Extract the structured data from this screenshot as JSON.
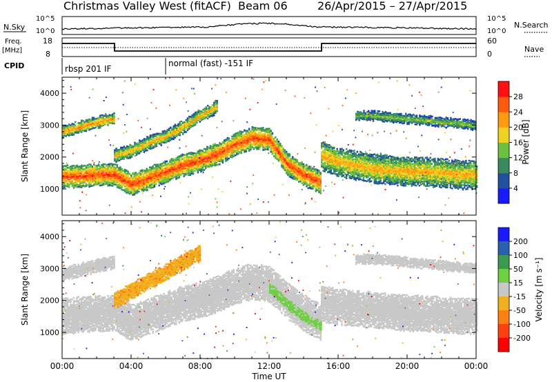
{
  "title": {
    "station": "Christmas Valley West (fitACF)",
    "beam": "Beam 06",
    "dates": "26/Apr/2015 – 27/Apr/2015"
  },
  "top_panels": {
    "nsky_label": "N.Sky",
    "nsky_tick_hi": "10^5",
    "nsky_tick_lo": "10^0",
    "nsearch_label": "N.Search",
    "freq_label_1": "Freq.",
    "freq_label_2": "[MHz]",
    "freq_tick_hi": "18",
    "freq_tick_lo": "8",
    "nave_label": "Nave",
    "nave_tick_hi": "60",
    "nave_tick_lo": "0",
    "cpid_label": "CPID",
    "cpid_mode_1": "rbsp 201 IF",
    "cpid_mode_2": "normal (fast) -151 IF"
  },
  "axes": {
    "xlabel": "Time UT",
    "ylabel": "Slant Range [km]",
    "xticks": [
      "00:00",
      "04:00",
      "08:00",
      "12:00",
      "16:00",
      "20:00",
      "00:00"
    ],
    "yticks": [
      "1000",
      "2000",
      "3000",
      "4000"
    ]
  },
  "colorbars": {
    "power": {
      "label": "Power [dB]",
      "ticks": [
        "4",
        "8",
        "12",
        "16",
        "20",
        "24",
        "28"
      ],
      "colors": [
        "#1a1aff",
        "#2050a0",
        "#3a8a60",
        "#6cc040",
        "#f0d020",
        "#ff9a10",
        "#ff5a10",
        "#ff1010"
      ]
    },
    "velocity": {
      "label": "Velocity [m s⁻¹]",
      "ticks": [
        "200",
        "100",
        "50",
        "15",
        "-15",
        "-50",
        "-100",
        "-200"
      ],
      "colors": [
        "#1a1aff",
        "#2a60b0",
        "#3a9a50",
        "#6cd040",
        "#c8c8c8",
        "#f0b020",
        "#ff8010",
        "#ff4010",
        "#ff0000"
      ]
    }
  },
  "chart_data": [
    {
      "type": "heatmap",
      "title": "Power [dB]",
      "xlabel": "Time UT",
      "ylabel": "Slant Range [km]",
      "xlim": [
        0,
        24
      ],
      "ylim": [
        180,
        4500
      ],
      "colorbar": {
        "label": "Power [dB]",
        "range": [
          0,
          30
        ]
      },
      "echo_bands": [
        {
          "x": [
            0,
            1,
            2,
            3,
            4,
            5,
            6,
            7,
            8,
            9,
            10,
            11,
            12,
            13,
            14,
            15
          ],
          "y": [
            1400,
            1400,
            1450,
            1450,
            1150,
            1350,
            1550,
            1750,
            1900,
            2100,
            2400,
            2600,
            2550,
            1800,
            1450,
            1200
          ],
          "width": 350,
          "power": 26
        },
        {
          "x": [
            0,
            1,
            2,
            3
          ],
          "y": [
            2800,
            2950,
            3100,
            3200
          ],
          "width": 180,
          "power": 22
        },
        {
          "x": [
            3,
            4,
            5,
            6,
            7,
            8,
            9
          ],
          "y": [
            2050,
            2200,
            2450,
            2650,
            2950,
            3300,
            3600
          ],
          "width": 200,
          "power": 20
        },
        {
          "x": [
            15,
            16,
            17,
            18,
            19,
            20,
            21,
            22,
            23,
            24
          ],
          "y": [
            2050,
            1850,
            1750,
            1650,
            1600,
            1550,
            1550,
            1500,
            1450,
            1450
          ],
          "width": 450,
          "power": 20
        },
        {
          "x": [
            17,
            18,
            19,
            20,
            21,
            22,
            23,
            24
          ],
          "y": [
            3300,
            3300,
            3250,
            3200,
            3150,
            3100,
            3050,
            3000
          ],
          "width": 150,
          "power": 14
        }
      ]
    },
    {
      "type": "heatmap",
      "title": "Velocity [m s⁻¹]",
      "xlabel": "Time UT",
      "ylabel": "Slant Range [km]",
      "xlim": [
        0,
        24
      ],
      "ylim": [
        180,
        4500
      ],
      "colorbar": {
        "label": "Velocity [m s⁻¹]",
        "range": [
          -200,
          200
        ]
      },
      "echo_bands": [
        {
          "x": [
            0,
            1,
            2,
            3,
            4,
            5,
            6,
            7,
            8,
            9,
            10,
            11,
            12,
            13,
            14,
            15
          ],
          "y": [
            1500,
            1550,
            1600,
            1600,
            1300,
            1500,
            1700,
            1900,
            2000,
            2200,
            2450,
            2600,
            2500,
            2000,
            1600,
            1300
          ],
          "width": 550,
          "velocity": 0
        },
        {
          "x": [
            0,
            1,
            2,
            3
          ],
          "y": [
            2850,
            2950,
            3100,
            3200
          ],
          "width": 200,
          "velocity": 0
        },
        {
          "x": [
            3,
            4,
            5,
            6,
            7,
            8
          ],
          "y": [
            2000,
            2300,
            2600,
            2900,
            3200,
            3500
          ],
          "width": 250,
          "velocity": -50
        },
        {
          "x": [
            12,
            13,
            14,
            15
          ],
          "y": [
            2400,
            1900,
            1500,
            1200
          ],
          "width": 150,
          "velocity": 40
        },
        {
          "x": [
            15,
            16,
            17,
            18,
            19,
            20,
            21,
            22,
            23,
            24
          ],
          "y": [
            1900,
            1800,
            1750,
            1700,
            1650,
            1600,
            1600,
            1550,
            1500,
            1500
          ],
          "width": 550,
          "velocity": 0
        },
        {
          "x": [
            17,
            18,
            19,
            20,
            21,
            22,
            23,
            24
          ],
          "y": [
            3300,
            3300,
            3250,
            3200,
            3150,
            3100,
            3050,
            3000
          ],
          "width": 150,
          "velocity": 0
        }
      ]
    }
  ]
}
